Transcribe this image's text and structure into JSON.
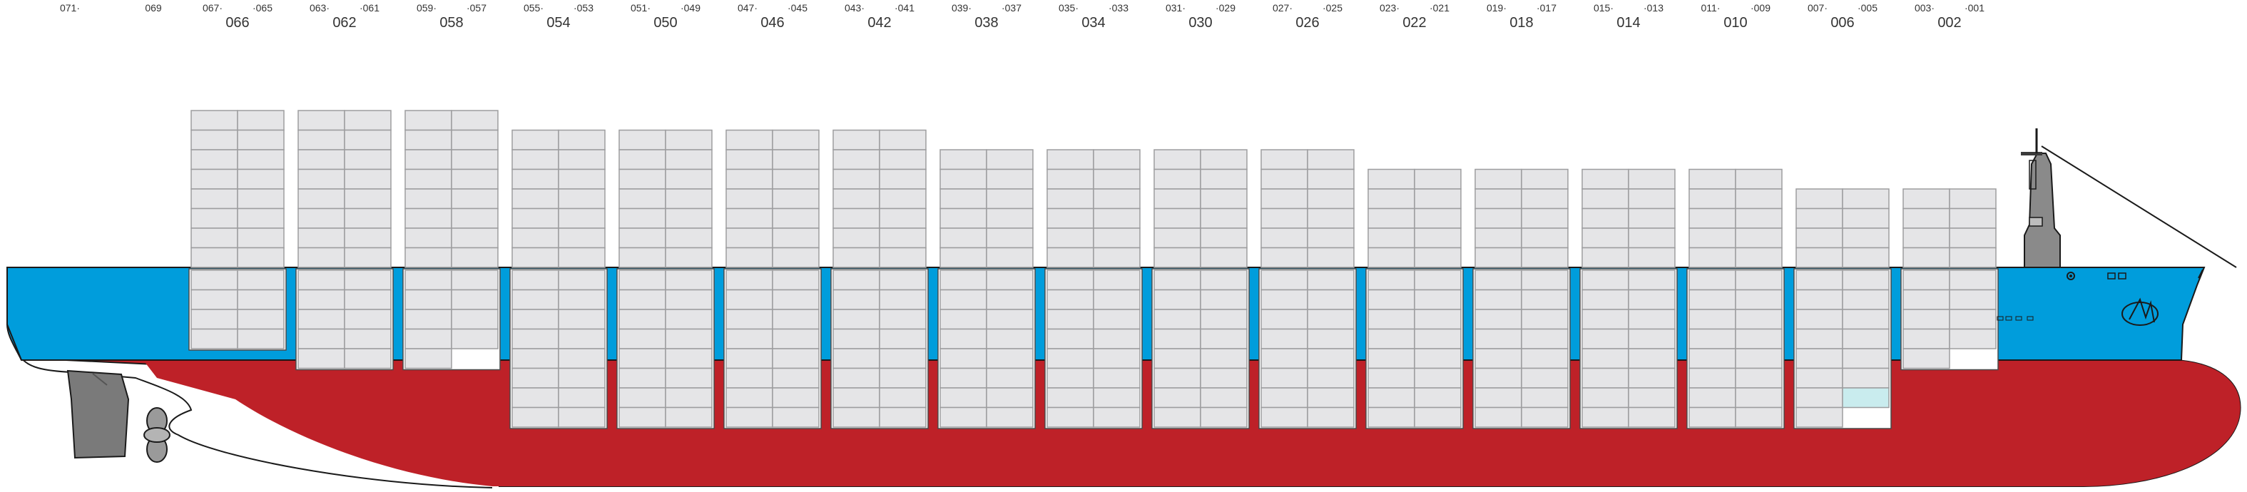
{
  "colors": {
    "hull_red": "#be2128",
    "hull_blue": "#009ddc",
    "hull_outline": "#1a1a1a",
    "container_fill": "#e5e5e7",
    "container_line": "#9d9d9f",
    "highlight_cell": "#c9ecee",
    "machinery": "#7a7a7a",
    "label_text": "#333333"
  },
  "icons": {
    "rudder": "rudder-icon",
    "propeller": "propeller-icon",
    "mast": "mast-icon",
    "anchor": "anchor-icon",
    "company_logo": "star-logo-icon"
  },
  "bays": [
    {
      "main": "",
      "left": "071·",
      "right": ""
    },
    {
      "main": "",
      "left": "069",
      "right": ""
    },
    {
      "main": "066",
      "left": "067·",
      "right": "·065"
    },
    {
      "main": "062",
      "left": "063·",
      "right": "·061"
    },
    {
      "main": "058",
      "left": "059·",
      "right": "·057"
    },
    {
      "main": "054",
      "left": "055·",
      "right": "·053"
    },
    {
      "main": "050",
      "left": "051·",
      "right": "·049"
    },
    {
      "main": "046",
      "left": "047·",
      "right": "·045"
    },
    {
      "main": "042",
      "left": "043·",
      "right": "·041"
    },
    {
      "main": "038",
      "left": "039·",
      "right": "·037"
    },
    {
      "main": "034",
      "left": "035·",
      "right": "·033"
    },
    {
      "main": "030",
      "left": "031·",
      "right": "·029"
    },
    {
      "main": "026",
      "left": "027·",
      "right": "·025"
    },
    {
      "main": "022",
      "left": "023·",
      "right": "·021"
    },
    {
      "main": "018",
      "left": "019·",
      "right": "·017"
    },
    {
      "main": "014",
      "left": "015·",
      "right": "·013"
    },
    {
      "main": "010",
      "left": "011·",
      "right": "·009"
    },
    {
      "main": "006",
      "left": "007·",
      "right": "·005"
    },
    {
      "main": "002",
      "left": "003·",
      "right": "·001"
    }
  ],
  "stacks": [
    {
      "bay": "066",
      "deck_tiers": 8,
      "hold_tiers": 4,
      "hold_missing": []
    },
    {
      "bay": "062",
      "deck_tiers": 8,
      "hold_tiers": 5,
      "hold_missing": []
    },
    {
      "bay": "058",
      "deck_tiers": 8,
      "hold_tiers": 5,
      "hold_missing": [
        "right-bottom"
      ]
    },
    {
      "bay": "054",
      "deck_tiers": 7,
      "hold_tiers": 8,
      "hold_missing": []
    },
    {
      "bay": "050",
      "deck_tiers": 7,
      "hold_tiers": 8,
      "hold_missing": []
    },
    {
      "bay": "046",
      "deck_tiers": 7,
      "hold_tiers": 8,
      "hold_missing": []
    },
    {
      "bay": "042",
      "deck_tiers": 7,
      "hold_tiers": 8,
      "hold_missing": []
    },
    {
      "bay": "038",
      "deck_tiers": 6,
      "hold_tiers": 8,
      "hold_missing": []
    },
    {
      "bay": "034",
      "deck_tiers": 6,
      "hold_tiers": 8,
      "hold_missing": []
    },
    {
      "bay": "030",
      "deck_tiers": 6,
      "hold_tiers": 8,
      "hold_missing": []
    },
    {
      "bay": "026",
      "deck_tiers": 6,
      "hold_tiers": 8,
      "hold_missing": []
    },
    {
      "bay": "022",
      "deck_tiers": 5,
      "hold_tiers": 8,
      "hold_missing": []
    },
    {
      "bay": "018",
      "deck_tiers": 5,
      "hold_tiers": 8,
      "hold_missing": []
    },
    {
      "bay": "014",
      "deck_tiers": 5,
      "hold_tiers": 8,
      "hold_missing": []
    },
    {
      "bay": "010",
      "deck_tiers": 5,
      "hold_tiers": 8,
      "hold_missing": []
    },
    {
      "bay": "006",
      "deck_tiers": 4,
      "hold_tiers": 8,
      "hold_missing": [
        "right-bottom-2"
      ]
    },
    {
      "bay": "002",
      "deck_tiers": 4,
      "hold_tiers": 5,
      "hold_missing": [
        "right-bottom"
      ]
    }
  ]
}
